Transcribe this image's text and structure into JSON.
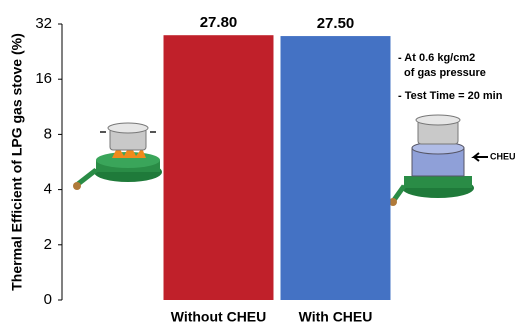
{
  "chart_data": {
    "type": "bar",
    "y_label": "Thermal Efficient of LPG gas stove (%)",
    "categories": [
      "Without CHEU",
      "With CHEU"
    ],
    "values": [
      27.8,
      27.5
    ],
    "value_labels": [
      "27.80",
      "27.50"
    ],
    "colors": [
      "#c0202a",
      "#4472c4"
    ],
    "yscale": "log2",
    "ylim": [
      0,
      32
    ],
    "yticks": [
      0,
      2,
      4,
      8,
      16,
      32
    ],
    "annotations": [
      "- At 0.6 kg/cm2",
      "of gas pressure",
      "- Test Time = 20 min",
      "CHEU"
    ]
  }
}
